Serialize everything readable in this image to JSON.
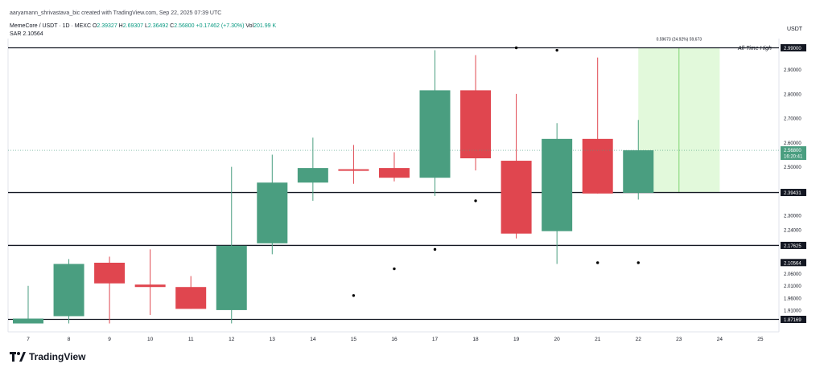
{
  "header": {
    "created_by": "aaryamann_shrivastava_bic created with TradingView.com, Sep 22, 2025 07:39 UTC"
  },
  "legend": {
    "symbol": "MemeCore / USDT · 1D · MEXC",
    "open_label": "O",
    "open": "2.39327",
    "high_label": "H",
    "high": "2.69307",
    "low_label": "L",
    "low": "2.36492",
    "close_label": "C",
    "close": "2.56800",
    "change": "+0.17462 (+7.30%)",
    "vol_label": "Vol",
    "vol": "201.99 K"
  },
  "sar": {
    "label": "SAR",
    "value": "2.10564"
  },
  "axis": {
    "currency": "USDT"
  },
  "brand": {
    "name": "TradingView"
  },
  "colors": {
    "up": "#4a9e80",
    "down": "#e0464f",
    "sar": "#000000",
    "level": "#131722",
    "range_fill": "#d8f7cf",
    "range_line": "#7fd470"
  },
  "chart_data": {
    "type": "candlestick",
    "x_ticks": [
      "7",
      "8",
      "9",
      "10",
      "11",
      "12",
      "13",
      "14",
      "15",
      "16",
      "17",
      "18",
      "19",
      "20",
      "21",
      "22",
      "23",
      "24",
      "25"
    ],
    "y_ticks": [
      "2.90000",
      "2.80000",
      "2.70000",
      "2.60000",
      "2.50000",
      "2.30000",
      "2.24000",
      "2.06000",
      "2.01000",
      "1.96000",
      "1.91000"
    ],
    "y_tick_values": [
      2.9,
      2.8,
      2.7,
      2.6,
      2.5,
      2.3,
      2.24,
      2.06,
      2.01,
      1.96,
      1.91
    ],
    "candles": [
      {
        "x": "7",
        "open": 1.855,
        "high": 2.01,
        "low": 1.855,
        "close": 1.875
      },
      {
        "x": "8",
        "open": 1.885,
        "high": 2.12,
        "low": 1.855,
        "close": 2.1
      },
      {
        "x": "9",
        "open": 2.105,
        "high": 2.13,
        "low": 1.855,
        "close": 2.02
      },
      {
        "x": "10",
        "open": 2.015,
        "high": 2.16,
        "low": 1.89,
        "close": 2.005
      },
      {
        "x": "11",
        "open": 2.005,
        "high": 2.05,
        "low": 1.915,
        "close": 1.915
      },
      {
        "x": "12",
        "open": 1.91,
        "high": 2.5,
        "low": 1.855,
        "close": 2.175
      },
      {
        "x": "13",
        "open": 2.185,
        "high": 2.55,
        "low": 2.14,
        "close": 2.435
      },
      {
        "x": "14",
        "open": 2.435,
        "high": 2.62,
        "low": 2.36,
        "close": 2.495
      },
      {
        "x": "15",
        "open": 2.49,
        "high": 2.59,
        "low": 2.43,
        "close": 2.485
      },
      {
        "x": "16",
        "open": 2.495,
        "high": 2.56,
        "low": 2.44,
        "close": 2.455
      },
      {
        "x": "17",
        "open": 2.455,
        "high": 2.98,
        "low": 2.38,
        "close": 2.815
      },
      {
        "x": "18",
        "open": 2.815,
        "high": 2.96,
        "low": 2.485,
        "close": 2.535
      },
      {
        "x": "19",
        "open": 2.525,
        "high": 2.8,
        "low": 2.205,
        "close": 2.225
      },
      {
        "x": "20",
        "open": 2.235,
        "high": 2.68,
        "low": 2.1,
        "close": 2.615
      },
      {
        "x": "21",
        "open": 2.615,
        "high": 2.95,
        "low": 2.39,
        "close": 2.39
      },
      {
        "x": "22",
        "open": 2.393,
        "high": 2.693,
        "low": 2.365,
        "close": 2.568
      }
    ],
    "sar_points": [
      {
        "x": "15",
        "value": 1.97
      },
      {
        "x": "16",
        "value": 2.08
      },
      {
        "x": "17",
        "value": 2.16
      },
      {
        "x": "18",
        "value": 2.36
      },
      {
        "x": "19",
        "value": 2.99
      },
      {
        "x": "20",
        "value": 2.98
      },
      {
        "x": "21",
        "value": 2.105
      },
      {
        "x": "22",
        "value": 2.105
      }
    ],
    "levels": [
      {
        "value": 2.99,
        "label": "2.99000",
        "note": "All-Time High"
      },
      {
        "value": 2.39431,
        "label": "2.39431"
      },
      {
        "value": 2.17625,
        "label": "2.17625"
      },
      {
        "value": 1.87169,
        "label": "1.87169"
      }
    ],
    "price_label": {
      "value": 2.568,
      "label": "2.56800",
      "countdown": "16:20:41"
    },
    "sar_label": {
      "value": 2.10564,
      "label": "2.10564"
    },
    "range_tool": {
      "from_x": "22",
      "to_x": "24",
      "from_value": 2.39431,
      "to_value": 2.99,
      "text": "0.59673 (24.92%) 59,673"
    },
    "y_range": [
      1.84,
      3.0
    ]
  }
}
